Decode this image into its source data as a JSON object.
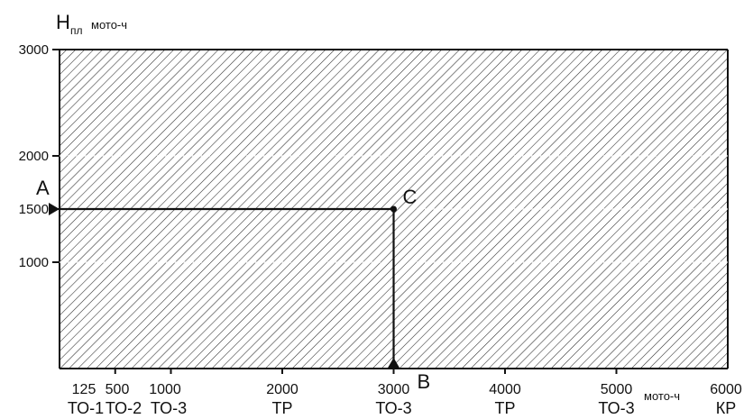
{
  "chart_data": {
    "type": "line",
    "ylabel": "H",
    "ylabel_sub": "пл",
    "ylabel_unit": "мото-ч",
    "xunit": "мото-ч",
    "xlim": [
      0,
      6000
    ],
    "ylim": [
      0,
      3000
    ],
    "grid": false,
    "hatched_area": true,
    "yticks": [
      {
        "value": 3000,
        "label": "3000"
      },
      {
        "value": 2000,
        "label": "2000"
      },
      {
        "value": 1500,
        "label": "1500"
      },
      {
        "value": 1000,
        "label": "1000"
      }
    ],
    "xticks": [
      {
        "value": 125,
        "label": "125",
        "sub": "ТО-1"
      },
      {
        "value": 500,
        "label": "500",
        "sub": "ТО-2"
      },
      {
        "value": 1000,
        "label": "1000",
        "sub": "ТО-3"
      },
      {
        "value": 2000,
        "label": "2000",
        "sub": "ТР"
      },
      {
        "value": 3000,
        "label": "3000",
        "sub": "ТО-3"
      },
      {
        "value": 4000,
        "label": "4000",
        "sub": "ТР"
      },
      {
        "value": 5000,
        "label": "5000",
        "sub": "ТО-3"
      },
      {
        "value": 6000,
        "label": "6000",
        "sub": "КР"
      }
    ],
    "series": [
      {
        "values": [
          [
            0,
            1500
          ],
          [
            3000,
            1500
          ],
          [
            3000,
            0
          ]
        ]
      }
    ],
    "points": [
      {
        "label": "A",
        "x": 0,
        "y": 1500
      },
      {
        "label": "C",
        "x": 3000,
        "y": 1500
      },
      {
        "label": "B",
        "x": 3000,
        "y": 0
      }
    ]
  }
}
